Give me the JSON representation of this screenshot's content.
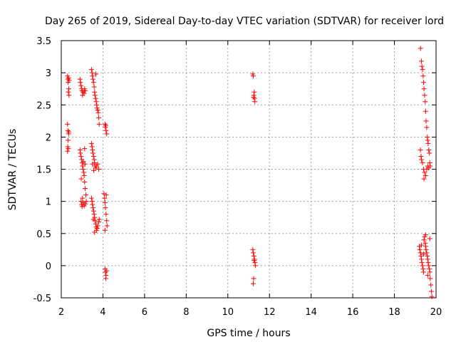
{
  "chart_data": {
    "type": "scatter",
    "title": "Day 265 of 2019, Sidereal Day-to-day VTEC variation (SDTVAR) for receiver lord",
    "xlabel": "GPS time / hours",
    "ylabel": "SDTVAR / TECUs",
    "xlim": [
      2,
      20
    ],
    "ylim": [
      -0.5,
      3.5
    ],
    "xticks": [
      2,
      4,
      6,
      8,
      10,
      12,
      14,
      16,
      18,
      20
    ],
    "yticks": [
      -0.5,
      0,
      0.5,
      1,
      1.5,
      2,
      2.5,
      3,
      3.5
    ],
    "xtick_labels": [
      "2",
      "4",
      "6",
      "8",
      "10",
      "12",
      "14",
      "16",
      "18",
      "20"
    ],
    "ytick_labels": [
      "-0.5",
      "0",
      "0.5",
      "1",
      "1.5",
      "2",
      "2.5",
      "3",
      "3.5"
    ],
    "grid": true,
    "marker": "plus",
    "color": "#ff0000",
    "series": [
      {
        "name": "SDTVAR",
        "points": [
          [
            2.3,
            2.95
          ],
          [
            2.32,
            2.9
          ],
          [
            2.35,
            2.92
          ],
          [
            2.33,
            2.85
          ],
          [
            2.36,
            2.75
          ],
          [
            2.34,
            2.7
          ],
          [
            2.37,
            2.65
          ],
          [
            2.38,
            2.88
          ],
          [
            2.3,
            2.2
          ],
          [
            2.32,
            2.1
          ],
          [
            2.35,
            2.05
          ],
          [
            2.33,
            1.95
          ],
          [
            2.31,
            1.85
          ],
          [
            2.3,
            1.78
          ],
          [
            2.36,
            2.08
          ],
          [
            2.34,
            1.82
          ],
          [
            2.9,
            2.9
          ],
          [
            2.92,
            2.85
          ],
          [
            2.95,
            2.8
          ],
          [
            2.98,
            2.75
          ],
          [
            3.0,
            2.72
          ],
          [
            3.05,
            2.7
          ],
          [
            3.1,
            2.68
          ],
          [
            3.12,
            2.75
          ],
          [
            3.15,
            2.72
          ],
          [
            3.02,
            2.65
          ],
          [
            2.9,
            1.8
          ],
          [
            2.92,
            1.75
          ],
          [
            2.95,
            1.7
          ],
          [
            2.98,
            1.65
          ],
          [
            3.0,
            1.6
          ],
          [
            3.02,
            1.55
          ],
          [
            3.05,
            1.5
          ],
          [
            3.08,
            1.45
          ],
          [
            3.1,
            1.4
          ],
          [
            3.12,
            1.3
          ],
          [
            3.15,
            1.2
          ],
          [
            3.18,
            1.1
          ],
          [
            2.96,
            1.35
          ],
          [
            3.06,
            1.62
          ],
          [
            3.14,
            1.58
          ],
          [
            3.2,
            1.0
          ],
          [
            2.95,
            1.0
          ],
          [
            2.98,
            0.95
          ],
          [
            3.0,
            0.92
          ],
          [
            3.05,
            0.98
          ],
          [
            3.1,
            0.93
          ],
          [
            3.15,
            0.96
          ],
          [
            3.02,
            1.05
          ],
          [
            3.12,
            1.82
          ],
          [
            3.45,
            3.05
          ],
          [
            3.48,
            3.0
          ],
          [
            3.5,
            2.95
          ],
          [
            3.52,
            2.9
          ],
          [
            3.55,
            2.85
          ],
          [
            3.58,
            2.78
          ],
          [
            3.6,
            2.7
          ],
          [
            3.62,
            2.65
          ],
          [
            3.65,
            2.6
          ],
          [
            3.68,
            2.55
          ],
          [
            3.7,
            2.5
          ],
          [
            3.72,
            2.45
          ],
          [
            3.75,
            2.42
          ],
          [
            3.78,
            2.38
          ],
          [
            3.8,
            2.3
          ],
          [
            3.82,
            2.2
          ],
          [
            3.66,
            2.98
          ],
          [
            3.45,
            1.9
          ],
          [
            3.48,
            1.85
          ],
          [
            3.5,
            1.8
          ],
          [
            3.52,
            1.75
          ],
          [
            3.55,
            1.7
          ],
          [
            3.58,
            1.65
          ],
          [
            3.6,
            1.6
          ],
          [
            3.62,
            1.55
          ],
          [
            3.65,
            1.52
          ],
          [
            3.7,
            1.55
          ],
          [
            3.75,
            1.58
          ],
          [
            3.8,
            1.5
          ],
          [
            3.5,
            1.58
          ],
          [
            3.56,
            1.48
          ],
          [
            3.45,
            1.05
          ],
          [
            3.48,
            1.0
          ],
          [
            3.5,
            0.95
          ],
          [
            3.52,
            0.9
          ],
          [
            3.55,
            0.85
          ],
          [
            3.58,
            0.8
          ],
          [
            3.6,
            0.75
          ],
          [
            3.62,
            0.7
          ],
          [
            3.65,
            0.65
          ],
          [
            3.68,
            0.6
          ],
          [
            3.7,
            0.55
          ],
          [
            3.72,
            0.58
          ],
          [
            3.75,
            0.62
          ],
          [
            3.8,
            0.68
          ],
          [
            3.82,
            0.72
          ],
          [
            3.6,
            0.52
          ],
          [
            3.54,
            0.72
          ],
          [
            4.1,
            2.2
          ],
          [
            4.12,
            2.15
          ],
          [
            4.15,
            2.1
          ],
          [
            4.18,
            2.05
          ],
          [
            4.14,
            2.18
          ],
          [
            4.05,
            1.12
          ],
          [
            4.08,
            1.05
          ],
          [
            4.1,
            0.98
          ],
          [
            4.12,
            0.9
          ],
          [
            4.15,
            0.8
          ],
          [
            4.18,
            0.7
          ],
          [
            4.2,
            0.62
          ],
          [
            4.1,
            0.55
          ],
          [
            4.16,
            1.1
          ],
          [
            4.1,
            -0.05
          ],
          [
            4.12,
            -0.1
          ],
          [
            4.15,
            -0.15
          ],
          [
            4.18,
            -0.08
          ],
          [
            4.14,
            -0.2
          ],
          [
            11.2,
            2.98
          ],
          [
            11.22,
            2.95
          ],
          [
            11.25,
            2.65
          ],
          [
            11.28,
            2.6
          ],
          [
            11.3,
            2.55
          ],
          [
            11.24,
            2.62
          ],
          [
            11.27,
            2.7
          ],
          [
            11.2,
            0.25
          ],
          [
            11.22,
            0.2
          ],
          [
            11.25,
            0.15
          ],
          [
            11.28,
            0.1
          ],
          [
            11.3,
            0.05
          ],
          [
            11.32,
            0.0
          ],
          [
            11.24,
            -0.2
          ],
          [
            11.22,
            -0.28
          ],
          [
            11.26,
            0.08
          ],
          [
            19.25,
            3.38
          ],
          [
            19.3,
            3.18
          ],
          [
            19.32,
            3.1
          ],
          [
            19.35,
            3.05
          ],
          [
            19.38,
            2.95
          ],
          [
            19.4,
            2.85
          ],
          [
            19.42,
            2.75
          ],
          [
            19.45,
            2.65
          ],
          [
            19.48,
            2.55
          ],
          [
            19.5,
            2.4
          ],
          [
            19.52,
            2.25
          ],
          [
            19.55,
            2.15
          ],
          [
            19.58,
            2.0
          ],
          [
            19.6,
            1.95
          ],
          [
            19.62,
            1.9
          ],
          [
            19.65,
            1.8
          ],
          [
            19.68,
            1.75
          ],
          [
            19.7,
            1.6
          ],
          [
            19.72,
            1.55
          ],
          [
            19.25,
            1.8
          ],
          [
            19.28,
            1.7
          ],
          [
            19.3,
            1.65
          ],
          [
            19.35,
            1.6
          ],
          [
            19.4,
            1.5
          ],
          [
            19.45,
            1.45
          ],
          [
            19.5,
            1.4
          ],
          [
            19.55,
            1.5
          ],
          [
            19.6,
            1.55
          ],
          [
            19.65,
            1.52
          ],
          [
            19.42,
            1.35
          ],
          [
            19.2,
            0.3
          ],
          [
            19.22,
            0.25
          ],
          [
            19.25,
            0.2
          ],
          [
            19.28,
            0.15
          ],
          [
            19.3,
            0.1
          ],
          [
            19.32,
            0.05
          ],
          [
            19.35,
            0.0
          ],
          [
            19.38,
            -0.05
          ],
          [
            19.4,
            -0.1
          ],
          [
            19.42,
            0.4
          ],
          [
            19.45,
            0.45
          ],
          [
            19.48,
            0.35
          ],
          [
            19.5,
            0.3
          ],
          [
            19.52,
            0.25
          ],
          [
            19.55,
            0.2
          ],
          [
            19.58,
            0.15
          ],
          [
            19.6,
            0.1
          ],
          [
            19.62,
            0.05
          ],
          [
            19.65,
            0.0
          ],
          [
            19.68,
            -0.05
          ],
          [
            19.7,
            -0.1
          ],
          [
            19.72,
            -0.2
          ],
          [
            19.75,
            -0.3
          ],
          [
            19.78,
            -0.4
          ],
          [
            19.8,
            -0.48
          ],
          [
            19.3,
            0.32
          ],
          [
            19.5,
            0.48
          ],
          [
            19.6,
            -0.15
          ],
          [
            19.7,
            0.42
          ],
          [
            19.4,
            0.18
          ]
        ]
      }
    ]
  }
}
